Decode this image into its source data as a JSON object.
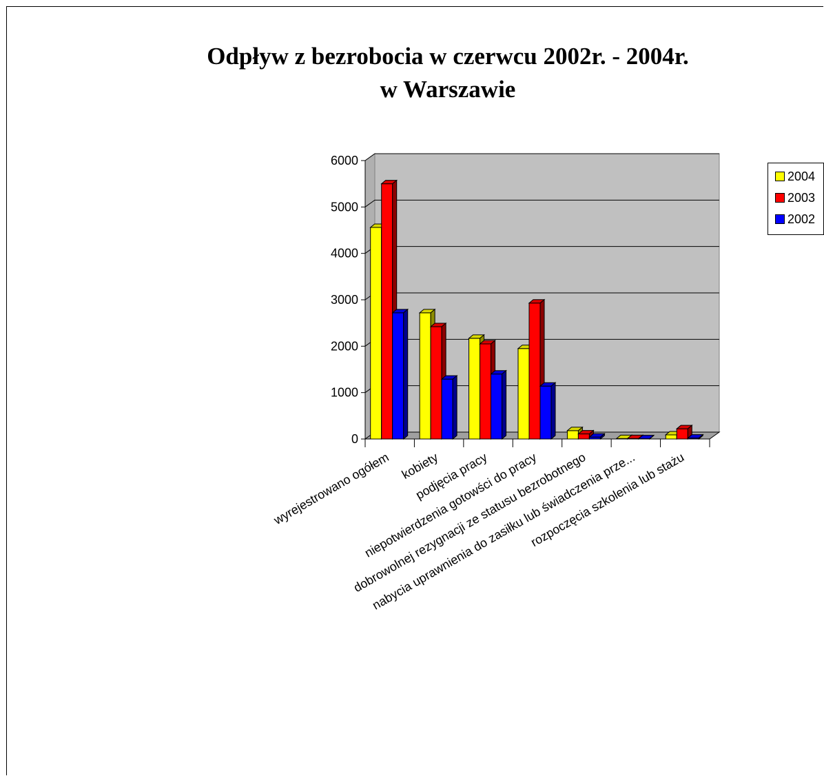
{
  "chart_data": {
    "type": "bar",
    "title": "Odpływ z bezrobocia w czerwcu 2002r. - 2004r. w Warszawie",
    "title_lines": [
      "Odpływ z bezrobocia w czerwcu 2002r. - 2004r.",
      "w Warszawie"
    ],
    "categories": [
      "wyrejestrowano ogółem",
      "kobiety",
      "podjęcia pracy",
      "niepotwierdzenia gotowści do pracy",
      "dobrowolnej rezygnacji ze statusu bezrobotnego",
      "nabycia uprawnienia do zasiłku lub świadczenia prze...",
      "rozpoczęcia szkolenia lub stażu"
    ],
    "series": [
      {
        "name": "2004",
        "color": "#ffff00",
        "values": [
          4560,
          2720,
          2170,
          1950,
          180,
          10,
          90
        ]
      },
      {
        "name": "2003",
        "color": "#ff0000",
        "values": [
          5500,
          2420,
          2050,
          2930,
          110,
          10,
          220
        ]
      },
      {
        "name": "2002",
        "color": "#0000ff",
        "values": [
          2720,
          1290,
          1400,
          1140,
          40,
          5,
          20
        ]
      }
    ],
    "ylim": [
      0,
      6000
    ],
    "yticks": [
      0,
      1000,
      2000,
      3000,
      4000,
      5000,
      6000
    ],
    "grid": true,
    "legend_position": "top-right",
    "style": "3d-clustered-bar",
    "wall_color": "#c0c0c0"
  }
}
